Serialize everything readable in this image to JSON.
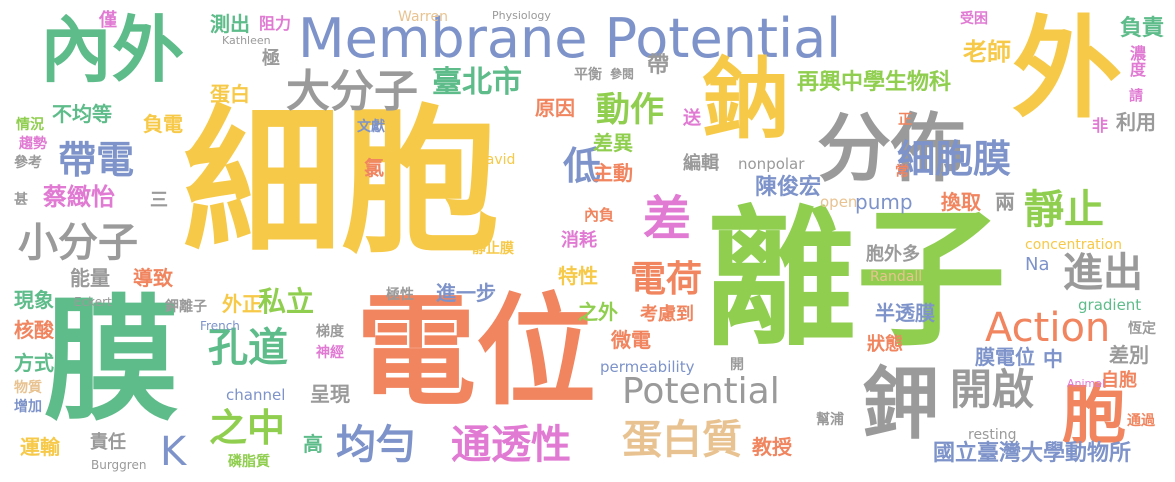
{
  "words": [
    {
      "text": "細胞",
      "color": "#f7c948"
    },
    {
      "text": "離子",
      "color": "#8fce4e"
    },
    {
      "text": "電位",
      "color": "#f0855f"
    },
    {
      "text": "膜",
      "color": "#5ebc8a"
    },
    {
      "text": "外",
      "color": "#f7c948"
    },
    {
      "text": "Membrane Potential",
      "color": "#7d93c9"
    },
    {
      "text": "內外",
      "color": "#5ebc8a"
    },
    {
      "text": "鈉",
      "color": "#f7c948"
    },
    {
      "text": "分佈",
      "color": "#9a9a9a"
    },
    {
      "text": "鉀",
      "color": "#9a9a9a"
    },
    {
      "text": "大分子",
      "color": "#9a9a9a"
    },
    {
      "text": "差",
      "color": "#e07ad3"
    },
    {
      "text": "細胞膜",
      "color": "#7d93c9"
    },
    {
      "text": "帶電",
      "color": "#7d93c9"
    },
    {
      "text": "小分子",
      "color": "#9a9a9a"
    },
    {
      "text": "動作",
      "color": "#8fce4e"
    },
    {
      "text": "臺北市",
      "color": "#5ebc8a"
    },
    {
      "text": "低",
      "color": "#7d93c9"
    },
    {
      "text": "靜止",
      "color": "#8fce4e"
    },
    {
      "text": "進出",
      "color": "#9a9a9a"
    },
    {
      "text": "電荷",
      "color": "#f0855f"
    },
    {
      "text": "孔道",
      "color": "#5ebc8a"
    },
    {
      "text": "Potential",
      "color": "#9a9a9a"
    },
    {
      "text": "Action",
      "color": "#f0855f"
    },
    {
      "text": "胞",
      "color": "#f0855f"
    },
    {
      "text": "開啟",
      "color": "#9a9a9a"
    },
    {
      "text": "均勻",
      "color": "#7d93c9"
    },
    {
      "text": "通透性",
      "color": "#e07ad3"
    },
    {
      "text": "蛋白質",
      "color": "#e8c391"
    },
    {
      "text": "之中",
      "color": "#8fce4e"
    },
    {
      "text": "私立",
      "color": "#8fce4e"
    },
    {
      "text": "蔡緻怡",
      "color": "#e07ad3"
    },
    {
      "text": "再興中學生物科",
      "color": "#8fce4e"
    },
    {
      "text": "老師",
      "color": "#f7c948"
    },
    {
      "text": "K",
      "color": "#7d93c9"
    },
    {
      "text": "負責",
      "color": "#5ebc8a"
    },
    {
      "text": "濃度",
      "color": "#e07ad3"
    },
    {
      "text": "測出",
      "color": "#5ebc8a"
    },
    {
      "text": "阻力",
      "color": "#e07ad3"
    },
    {
      "text": "極",
      "color": "#9a9a9a"
    },
    {
      "text": "僅",
      "color": "#e07ad3"
    },
    {
      "text": "Warren",
      "color": "#e8c391"
    },
    {
      "text": "Physiology",
      "color": "#9a9a9a"
    },
    {
      "text": "Kathleen",
      "color": "#9a9a9a"
    },
    {
      "text": "受困",
      "color": "#e07ad3"
    },
    {
      "text": "帶",
      "color": "#9a9a9a"
    },
    {
      "text": "平衡",
      "color": "#9a9a9a"
    },
    {
      "text": "參閱",
      "color": "#9a9a9a"
    },
    {
      "text": "蛋白",
      "color": "#f7c948"
    },
    {
      "text": "不均等",
      "color": "#5ebc8a"
    },
    {
      "text": "情況",
      "color": "#8fce4e"
    },
    {
      "text": "負電",
      "color": "#f7c948"
    },
    {
      "text": "趨勢",
      "color": "#e07ad3"
    },
    {
      "text": "參考",
      "color": "#9a9a9a"
    },
    {
      "text": "文獻",
      "color": "#7d93c9"
    },
    {
      "text": "原因",
      "color": "#f0855f"
    },
    {
      "text": "送",
      "color": "#e07ad3"
    },
    {
      "text": "正",
      "color": "#f0855f"
    },
    {
      "text": "非",
      "color": "#e07ad3"
    },
    {
      "text": "利用",
      "color": "#9a9a9a"
    },
    {
      "text": "請",
      "color": "#e07ad3"
    },
    {
      "text": "差異",
      "color": "#8fce4e"
    },
    {
      "text": "編輯",
      "color": "#9a9a9a"
    },
    {
      "text": "主動",
      "color": "#f0855f"
    },
    {
      "text": "陳俊宏",
      "color": "#7d93c9"
    },
    {
      "text": "nonpolar",
      "color": "#9a9a9a"
    },
    {
      "text": "常",
      "color": "#f0855f"
    },
    {
      "text": "氯",
      "color": "#f0855f"
    },
    {
      "text": "David",
      "color": "#f7c948"
    },
    {
      "text": "甚",
      "color": "#9a9a9a"
    },
    {
      "text": "三",
      "color": "#9a9a9a"
    },
    {
      "text": "open",
      "color": "#e8c391"
    },
    {
      "text": "pump",
      "color": "#7d93c9"
    },
    {
      "text": "換取",
      "color": "#f0855f"
    },
    {
      "text": "兩",
      "color": "#9a9a9a"
    },
    {
      "text": "內負",
      "color": "#f0855f"
    },
    {
      "text": "消耗",
      "color": "#e07ad3"
    },
    {
      "text": "靜止膜",
      "color": "#f7c948"
    },
    {
      "text": "concentration",
      "color": "#f7c948"
    },
    {
      "text": "胞外多",
      "color": "#9a9a9a"
    },
    {
      "text": "Na",
      "color": "#7d93c9"
    },
    {
      "text": "能量",
      "color": "#9a9a9a"
    },
    {
      "text": "導致",
      "color": "#f0855f"
    },
    {
      "text": "特性",
      "color": "#f7c948"
    },
    {
      "text": "Randall",
      "color": "#e8c391"
    },
    {
      "text": "現象",
      "color": "#5ebc8a"
    },
    {
      "text": "Eckert",
      "color": "#9a9a9a"
    },
    {
      "text": "鉀離子",
      "color": "#9a9a9a"
    },
    {
      "text": "外正",
      "color": "#f7c948"
    },
    {
      "text": "極性",
      "color": "#9a9a9a"
    },
    {
      "text": "進一步",
      "color": "#7d93c9"
    },
    {
      "text": "gradient",
      "color": "#5ebc8a"
    },
    {
      "text": "核酸",
      "color": "#f0855f"
    },
    {
      "text": "French",
      "color": "#7d93c9"
    },
    {
      "text": "梯度",
      "color": "#9a9a9a"
    },
    {
      "text": "之外",
      "color": "#8fce4e"
    },
    {
      "text": "考慮到",
      "color": "#f0855f"
    },
    {
      "text": "半透膜",
      "color": "#7d93c9"
    },
    {
      "text": "恆定",
      "color": "#9a9a9a"
    },
    {
      "text": "方式",
      "color": "#5ebc8a"
    },
    {
      "text": "神經",
      "color": "#e07ad3"
    },
    {
      "text": "微電",
      "color": "#f0855f"
    },
    {
      "text": "狀態",
      "color": "#f0855f"
    },
    {
      "text": "膜電位",
      "color": "#7d93c9"
    },
    {
      "text": "中",
      "color": "#7d93c9"
    },
    {
      "text": "差別",
      "color": "#9a9a9a"
    },
    {
      "text": "物質",
      "color": "#e8c391"
    },
    {
      "text": "permeability",
      "color": "#7d93c9"
    },
    {
      "text": "開",
      "color": "#9a9a9a"
    },
    {
      "text": "自胞",
      "color": "#f0855f"
    },
    {
      "text": "Animal",
      "color": "#e07ad3"
    },
    {
      "text": "增加",
      "color": "#7d93c9"
    },
    {
      "text": "channel",
      "color": "#7d93c9"
    },
    {
      "text": "呈現",
      "color": "#9a9a9a"
    },
    {
      "text": "幫浦",
      "color": "#9a9a9a"
    },
    {
      "text": "運輸",
      "color": "#f7c948"
    },
    {
      "text": "責任",
      "color": "#9a9a9a"
    },
    {
      "text": "高",
      "color": "#5ebc8a"
    },
    {
      "text": "教授",
      "color": "#f0855f"
    },
    {
      "text": "resting",
      "color": "#9a9a9a"
    },
    {
      "text": "通過",
      "color": "#f0855f"
    },
    {
      "text": "Burggren",
      "color": "#9a9a9a"
    },
    {
      "text": "磷脂質",
      "color": "#8fce4e"
    },
    {
      "text": "國立臺灣大學動物所",
      "color": "#7d93c9"
    }
  ]
}
